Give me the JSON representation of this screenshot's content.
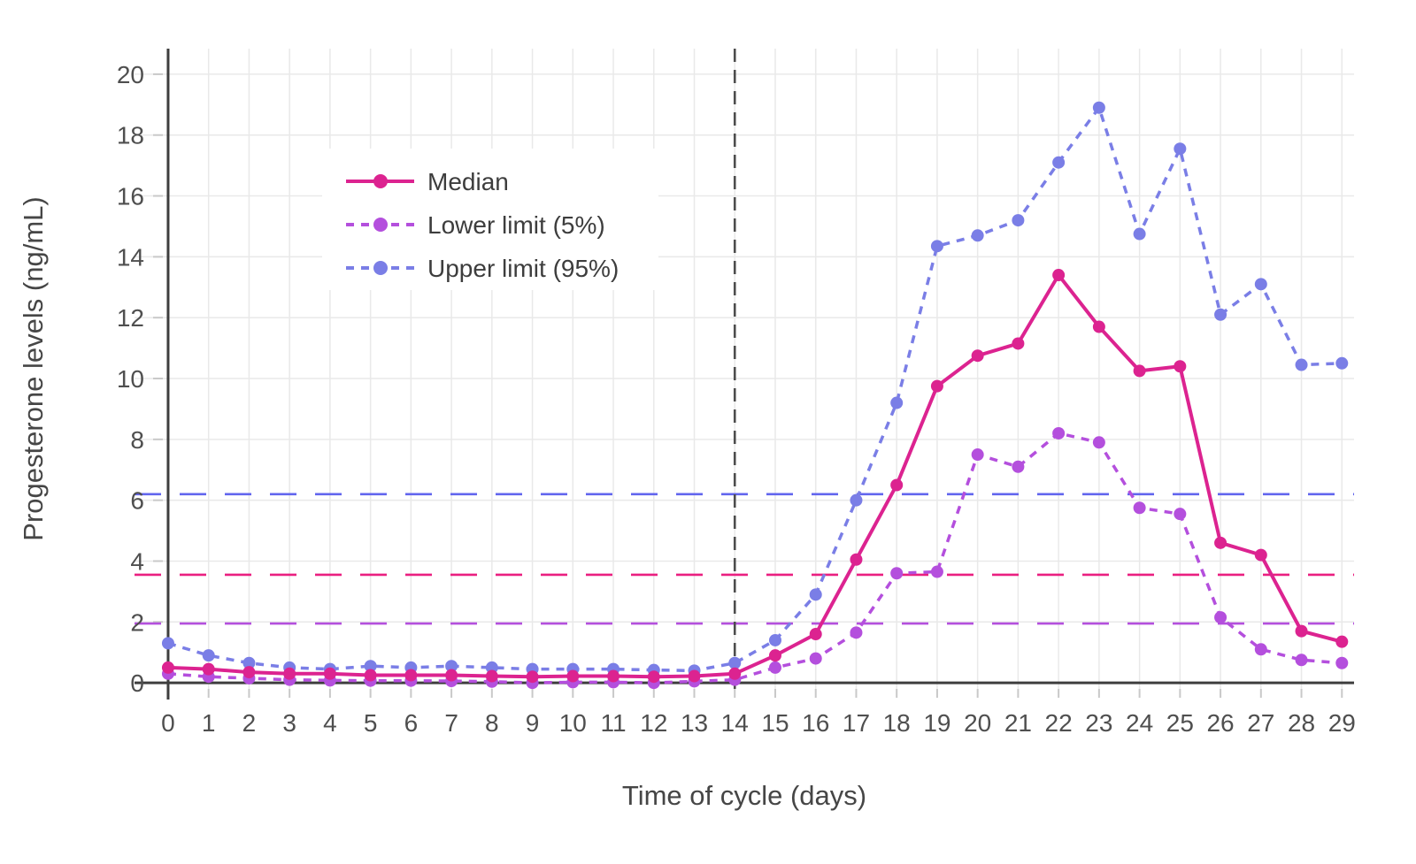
{
  "chart_data": {
    "type": "line",
    "title": "",
    "xlabel": "Time of cycle (days)",
    "ylabel": "Progesterone levels (ng/mL)",
    "x": [
      0,
      1,
      2,
      3,
      4,
      5,
      6,
      7,
      8,
      9,
      10,
      11,
      12,
      13,
      14,
      15,
      16,
      17,
      18,
      19,
      20,
      21,
      22,
      23,
      24,
      25,
      26,
      27,
      28,
      29
    ],
    "xlim": [
      -0.83,
      29.3
    ],
    "ylim": [
      -0.2,
      20.84
    ],
    "yticks": [
      0,
      2,
      4,
      6,
      8,
      10,
      12,
      14,
      16,
      18,
      20
    ],
    "grid": true,
    "legend_position": "top-left",
    "series": [
      {
        "name": "Median",
        "color": "#dc2390",
        "dash": "solid",
        "line_width": 4,
        "values": [
          0.5,
          0.45,
          0.35,
          0.3,
          0.3,
          0.25,
          0.25,
          0.25,
          0.22,
          0.2,
          0.22,
          0.22,
          0.2,
          0.22,
          0.3,
          0.9,
          1.6,
          4.05,
          6.5,
          9.75,
          10.75,
          11.15,
          13.4,
          11.7,
          10.25,
          10.4,
          4.6,
          4.2,
          1.7,
          1.35
        ]
      },
      {
        "name": "Lower limit (5%)",
        "color": "#b44fdd",
        "dash": "dashed",
        "line_width": 3.5,
        "values": [
          0.3,
          0.2,
          0.15,
          0.1,
          0.08,
          0.07,
          0.07,
          0.06,
          0.04,
          0.0,
          0.02,
          0.02,
          0.0,
          0.05,
          0.1,
          0.5,
          0.8,
          1.65,
          3.6,
          3.65,
          7.5,
          7.1,
          8.2,
          7.9,
          5.75,
          5.55,
          2.15,
          1.1,
          0.75,
          0.65
        ]
      },
      {
        "name": "Upper limit (95%)",
        "color": "#7a7ee6",
        "dash": "dashed",
        "line_width": 3.5,
        "values": [
          1.3,
          0.9,
          0.65,
          0.5,
          0.45,
          0.55,
          0.5,
          0.55,
          0.5,
          0.45,
          0.45,
          0.45,
          0.42,
          0.4,
          0.65,
          1.4,
          2.9,
          6.0,
          9.2,
          14.35,
          14.7,
          15.2,
          17.1,
          18.9,
          14.75,
          17.55,
          12.1,
          13.1,
          10.45,
          10.5
        ]
      }
    ],
    "reference_lines": {
      "horizontal": [
        {
          "id": "upper-threshold",
          "y": 6.2,
          "color": "#6265ee"
        },
        {
          "id": "median-threshold",
          "y": 3.55,
          "color": "#ea1f80"
        },
        {
          "id": "lower-threshold",
          "y": 1.95,
          "color": "#b44fdd"
        }
      ],
      "vertical": [
        {
          "id": "ovulation-day",
          "x": 14,
          "color": "#4d4d4d"
        }
      ]
    },
    "style": {
      "grid_color": "#e9e9e9",
      "axis_color": "#3e3e3e",
      "tick_mark_color": "#c9c9c9",
      "tick_label_color": "#4f4f4f",
      "axis_title_color": "#464646",
      "legend_text_color": "#3d3d3d",
      "background": "#ffffff"
    }
  }
}
